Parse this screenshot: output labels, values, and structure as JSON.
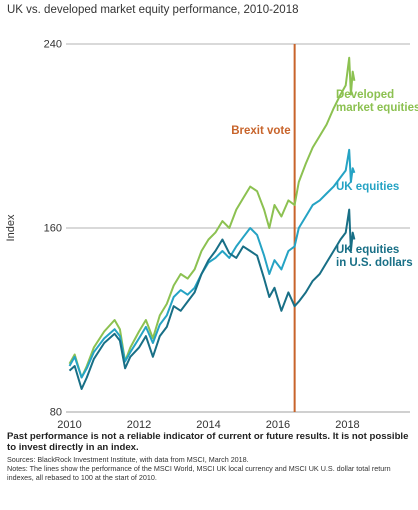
{
  "chart_data": {
    "type": "line",
    "title": "UK vs. developed market equity performance, 2010-2018",
    "ylabel": "Index",
    "xlabel": "",
    "x_ticks": [
      "2010",
      "2012",
      "2014",
      "2016",
      "2018"
    ],
    "y_ticks": [
      80,
      160,
      240
    ],
    "xlim": [
      2009.9,
      2019.8
    ],
    "ylim": [
      80,
      240
    ],
    "grid": "horizontal",
    "annotation": {
      "label": "Brexit vote",
      "x": 2016.48,
      "color": "#c8642b"
    },
    "series": [
      {
        "name": "Developed market equities",
        "label_lines": [
          "Developed",
          "market equities"
        ],
        "color": "#8cc151",
        "x": [
          2010.0,
          2010.15,
          2010.35,
          2010.5,
          2010.7,
          2011.0,
          2011.3,
          2011.45,
          2011.6,
          2011.75,
          2012.0,
          2012.2,
          2012.4,
          2012.6,
          2012.8,
          2013.0,
          2013.2,
          2013.4,
          2013.6,
          2013.8,
          2014.0,
          2014.2,
          2014.4,
          2014.6,
          2014.8,
          2015.0,
          2015.2,
          2015.4,
          2015.6,
          2015.75,
          2015.9,
          2016.1,
          2016.3,
          2016.48,
          2016.6,
          2016.8,
          2017.0,
          2017.2,
          2017.4,
          2017.6,
          2017.8,
          2017.95,
          2018.05,
          2018.1,
          2018.15,
          2018.2
        ],
        "values": [
          101,
          105,
          95,
          100,
          108,
          115,
          120,
          116,
          102,
          108,
          115,
          120,
          112,
          122,
          127,
          135,
          140,
          138,
          142,
          150,
          155,
          158,
          163,
          160,
          168,
          173,
          178,
          176,
          168,
          160,
          170,
          165,
          172,
          170,
          180,
          188,
          195,
          200,
          205,
          212,
          218,
          222,
          234,
          218,
          228,
          224
        ]
      },
      {
        "name": "UK equities",
        "label_lines": [
          "UK equities"
        ],
        "color": "#25a3c4",
        "x": [
          2010.0,
          2010.15,
          2010.35,
          2010.5,
          2010.7,
          2011.0,
          2011.3,
          2011.45,
          2011.6,
          2011.75,
          2012.0,
          2012.2,
          2012.4,
          2012.6,
          2012.8,
          2013.0,
          2013.2,
          2013.4,
          2013.6,
          2013.8,
          2014.0,
          2014.2,
          2014.4,
          2014.6,
          2014.8,
          2015.0,
          2015.2,
          2015.4,
          2015.6,
          2015.75,
          2015.9,
          2016.1,
          2016.3,
          2016.48,
          2016.6,
          2016.8,
          2017.0,
          2017.2,
          2017.4,
          2017.6,
          2017.8,
          2017.95,
          2018.05,
          2018.1,
          2018.15,
          2018.2
        ],
        "values": [
          100,
          104,
          95,
          99,
          106,
          112,
          116,
          113,
          102,
          106,
          112,
          117,
          110,
          118,
          122,
          130,
          133,
          131,
          134,
          140,
          145,
          147,
          150,
          147,
          152,
          156,
          160,
          157,
          148,
          140,
          146,
          142,
          150,
          152,
          160,
          165,
          170,
          172,
          175,
          178,
          182,
          185,
          194,
          180,
          186,
          184
        ]
      },
      {
        "name": "UK equities in U.S. dollars",
        "label_lines": [
          "UK equities",
          "in U.S. dollars"
        ],
        "color": "#186f86",
        "x": [
          2010.0,
          2010.15,
          2010.35,
          2010.5,
          2010.7,
          2011.0,
          2011.3,
          2011.45,
          2011.6,
          2011.75,
          2012.0,
          2012.2,
          2012.4,
          2012.6,
          2012.8,
          2013.0,
          2013.2,
          2013.4,
          2013.6,
          2013.8,
          2014.0,
          2014.2,
          2014.4,
          2014.6,
          2014.8,
          2015.0,
          2015.2,
          2015.4,
          2015.6,
          2015.75,
          2015.9,
          2016.1,
          2016.3,
          2016.48,
          2016.6,
          2016.8,
          2017.0,
          2017.2,
          2017.4,
          2017.6,
          2017.8,
          2017.95,
          2018.05,
          2018.1,
          2018.15,
          2018.2
        ],
        "values": [
          98,
          100,
          90,
          95,
          103,
          110,
          114,
          111,
          99,
          104,
          108,
          113,
          104,
          113,
          117,
          126,
          124,
          128,
          132,
          140,
          146,
          150,
          155,
          149,
          147,
          152,
          150,
          148,
          138,
          130,
          134,
          124,
          132,
          126,
          128,
          132,
          137,
          140,
          145,
          150,
          155,
          158,
          168,
          150,
          158,
          155
        ]
      }
    ]
  },
  "footer": {
    "disclaimer": "Past performance is not a reliable indicator of current or future results. It is not possible to invest directly in an index.",
    "sources": "Sources: BlackRock Investment Institute, with data from MSCI, March 2018.",
    "notes": "Notes: The lines show the performance of the MSCI World, MSCI UK local currency and MSCI UK U.S. dollar total return indexes, all rebased to 100 at the start of 2010."
  }
}
